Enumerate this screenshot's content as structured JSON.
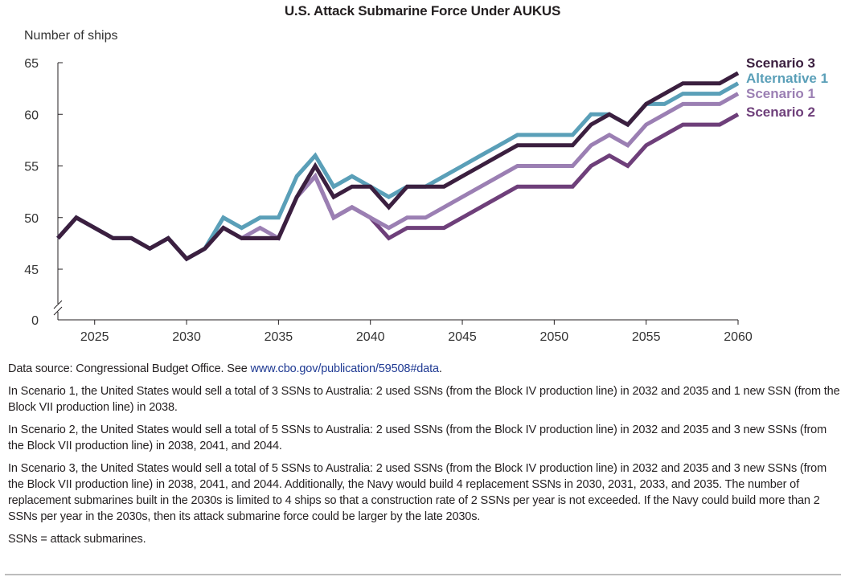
{
  "chart_data": {
    "type": "line",
    "title": "U.S. Attack Submarine Force Under AUKUS",
    "ylabel": "Number of ships",
    "xlim": [
      2023,
      2060
    ],
    "ylim": [
      45,
      65
    ],
    "y_axis_break": true,
    "x_ticks": [
      2025,
      2030,
      2035,
      2040,
      2045,
      2050,
      2055,
      2060
    ],
    "y_ticks": [
      0,
      45,
      50,
      55,
      60,
      65
    ],
    "grid": false,
    "legend": "end-of-line labels, top-right",
    "x": [
      2023,
      2024,
      2025,
      2026,
      2027,
      2028,
      2029,
      2030,
      2031,
      2032,
      2033,
      2034,
      2035,
      2036,
      2037,
      2038,
      2039,
      2040,
      2041,
      2042,
      2043,
      2044,
      2045,
      2046,
      2047,
      2048,
      2049,
      2050,
      2051,
      2052,
      2053,
      2054,
      2055,
      2056,
      2057,
      2058,
      2059,
      2060
    ],
    "series": [
      {
        "name": "Scenario 3",
        "color": "#3b1f3f",
        "values": [
          48,
          50,
          49,
          48,
          48,
          47,
          48,
          46,
          47,
          49,
          48,
          48,
          48,
          52,
          55,
          52,
          53,
          53,
          51,
          53,
          53,
          53,
          54,
          55,
          56,
          57,
          57,
          57,
          57,
          59,
          60,
          59,
          61,
          62,
          63,
          63,
          63,
          64
        ]
      },
      {
        "name": "Alternative 1",
        "color": "#5a9fb8",
        "values": [
          48,
          50,
          49,
          48,
          48,
          47,
          48,
          46,
          47,
          50,
          49,
          50,
          50,
          54,
          56,
          53,
          54,
          53,
          52,
          53,
          53,
          54,
          55,
          56,
          57,
          58,
          58,
          58,
          58,
          60,
          60,
          59,
          61,
          61,
          62,
          62,
          62,
          63
        ]
      },
      {
        "name": "Scenario 1",
        "color": "#9b7fb3",
        "values": [
          48,
          50,
          49,
          48,
          48,
          47,
          48,
          46,
          47,
          49,
          48,
          49,
          48,
          52,
          54,
          50,
          51,
          50,
          49,
          50,
          50,
          51,
          52,
          53,
          54,
          55,
          55,
          55,
          55,
          57,
          58,
          57,
          59,
          60,
          61,
          61,
          61,
          62
        ]
      },
      {
        "name": "Scenario 2",
        "color": "#6e3f7a",
        "values": [
          48,
          50,
          49,
          48,
          48,
          47,
          48,
          46,
          47,
          49,
          48,
          48,
          48,
          52,
          54,
          50,
          51,
          50,
          48,
          49,
          49,
          49,
          50,
          51,
          52,
          53,
          53,
          53,
          53,
          55,
          56,
          55,
          57,
          58,
          59,
          59,
          59,
          60
        ]
      }
    ]
  },
  "notes": {
    "source_prefix": "Data source: Congressional Budget Office. See ",
    "source_link": "www.cbo.gov/publication/59508#data",
    "source_suffix": ".",
    "scenario1": "In Scenario 1, the United States would sell a total of 3 SSNs to Australia: 2 used SSNs (from the Block IV production line) in 2032 and 2035 and 1 new SSN (from the Block VII production line) in 2038.",
    "scenario2": "In Scenario 2, the United States would sell a total of 5 SSNs to Australia: 2 used SSNs (from the Block IV production line) in 2032 and 2035 and 3 new SSNs (from the Block VII production line) in 2038, 2041, and 2044.",
    "scenario3": "In Scenario 3, the United States would sell a total of 5 SSNs to Australia: 2 used SSNs (from the Block IV production line) in 2032 and 2035 and 3 new SSNs (from the Block VII production line) in 2038, 2041, and 2044. Additionally, the Navy would build 4 replacement SSNs in 2030, 2031, 2033, and 2035. The number of replacement submarines built in the 2030s is limited to 4 ships so that a construction rate of 2 SSNs per year is not exceeded. If the Navy could build more than 2 SSNs per year in the 2030s, then its attack submarine force could be larger by the late 2030s.",
    "abbrev": "SSNs = attack submarines."
  }
}
